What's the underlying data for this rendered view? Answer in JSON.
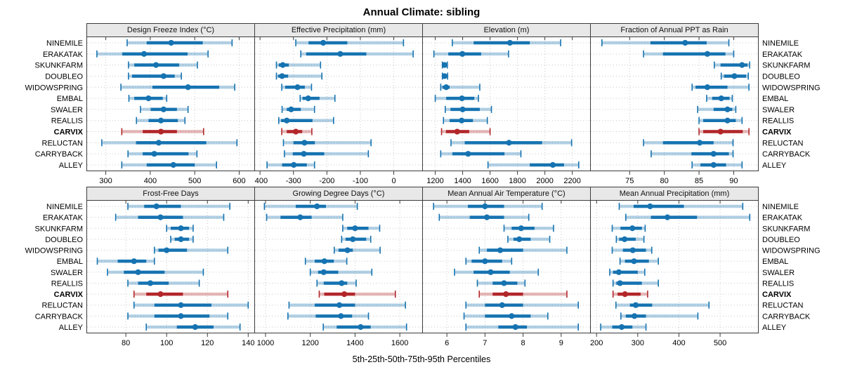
{
  "title": "Annual Climate: sibling",
  "footer": "5th-25th-50th-75th-95th Percentiles",
  "sites": [
    "NINEMILE",
    "ERAKATAK",
    "SKUNKFARM",
    "DOUBLEO",
    "WIDOWSPRING",
    "EMBAL",
    "SWALER",
    "REALLIS",
    "CARVIX",
    "RELUCTAN",
    "CARRYBACK",
    "ALLEY"
  ],
  "highlight_site": "CARVIX",
  "percentile_labels": [
    "5th",
    "25th",
    "50th",
    "75th",
    "95th"
  ],
  "colors": {
    "series": "#1673b1",
    "highlight": "#b2262a",
    "strip_bg": "#e8e8e8",
    "panel_border": "#3c3c3c",
    "gridline": "#c9c9c9",
    "text": "#000000"
  },
  "chart_data": [
    {
      "type": "percentile-range",
      "title": "Design Freeze Index (°C)",
      "row": 1,
      "xlim": [
        258,
        634
      ],
      "ticks": [
        300,
        400,
        500,
        600
      ],
      "values": [
        [
          348,
          392,
          447,
          518,
          584
        ],
        [
          280,
          337,
          386,
          484,
          530
        ],
        [
          351,
          364,
          413,
          465,
          506
        ],
        [
          351,
          359,
          430,
          455,
          470
        ],
        [
          334,
          405,
          485,
          555,
          590
        ],
        [
          352,
          364,
          396,
          428,
          437
        ],
        [
          378,
          401,
          430,
          460,
          485
        ],
        [
          369,
          396,
          424,
          462,
          478
        ],
        [
          336,
          383,
          424,
          460,
          520
        ],
        [
          291,
          368,
          419,
          526,
          595
        ],
        [
          350,
          383,
          409,
          486,
          505
        ],
        [
          336,
          392,
          452,
          500,
          549
        ]
      ]
    },
    {
      "type": "percentile-range",
      "title": "Effective Precipitation (mm)",
      "row": 1,
      "xlim": [
        -415,
        85
      ],
      "ticks": [
        -400,
        -300,
        -200,
        -100,
        0
      ],
      "values": [
        [
          -293,
          -255,
          -211,
          -139,
          29
        ],
        [
          -278,
          -262,
          -160,
          -82,
          58
        ],
        [
          -351,
          -344,
          -332,
          -314,
          -219
        ],
        [
          -351,
          -346,
          -334,
          -316,
          -215
        ],
        [
          -335,
          -325,
          -288,
          -266,
          -246
        ],
        [
          -280,
          -273,
          -256,
          -222,
          -176
        ],
        [
          -334,
          -320,
          -307,
          -278,
          -237
        ],
        [
          -344,
          -337,
          -320,
          -243,
          -180
        ],
        [
          -335,
          -320,
          -293,
          -274,
          -245
        ],
        [
          -330,
          -300,
          -267,
          -236,
          -68
        ],
        [
          -327,
          -302,
          -269,
          -208,
          -76
        ],
        [
          -379,
          -334,
          -299,
          -260,
          -237
        ]
      ]
    },
    {
      "type": "percentile-range",
      "title": "Elevation (m)",
      "row": 1,
      "xlim": [
        1110,
        2330
      ],
      "ticks": [
        1200,
        1400,
        1600,
        1800,
        2000,
        2200
      ],
      "values": [
        [
          1325,
          1480,
          1745,
          1890,
          2115
        ],
        [
          1190,
          1295,
          1398,
          1535,
          1735
        ],
        [
          1252,
          1258,
          1268,
          1280,
          1288
        ],
        [
          1252,
          1258,
          1268,
          1280,
          1290
        ],
        [
          1240,
          1252,
          1280,
          1305,
          1525
        ],
        [
          1200,
          1280,
          1395,
          1485,
          1515
        ],
        [
          1273,
          1311,
          1400,
          1525,
          1610
        ],
        [
          1260,
          1305,
          1393,
          1475,
          1580
        ],
        [
          1246,
          1278,
          1360,
          1448,
          1600
        ],
        [
          1315,
          1415,
          1738,
          1980,
          2195
        ],
        [
          1240,
          1325,
          1440,
          1705,
          1825
        ],
        [
          1585,
          1890,
          2058,
          2140,
          2247
        ]
      ]
    },
    {
      "type": "percentile-range",
      "title": "Fraction of Annual PPT as Rain",
      "row": 1,
      "xlim": [
        69.4,
        93.5
      ],
      "ticks": [
        75,
        80,
        85,
        90
      ],
      "values": [
        [
          71,
          78,
          83,
          86.1,
          89.3
        ],
        [
          77,
          79.8,
          86.2,
          88.8,
          90
        ],
        [
          87.2,
          88.1,
          91.2,
          92,
          92.3
        ],
        [
          88.2,
          88.6,
          90.1,
          91.8,
          92.1
        ],
        [
          84,
          84.5,
          86.2,
          89.1,
          92.2
        ],
        [
          86.1,
          86.9,
          88.2,
          89.4,
          89.8
        ],
        [
          84.8,
          87.1,
          89.1,
          89.8,
          90.3
        ],
        [
          85,
          85.6,
          89.1,
          90.3,
          91.2
        ],
        [
          85,
          85.6,
          88.1,
          91.3,
          92.2
        ],
        [
          77,
          79.8,
          85.1,
          87.1,
          89.9
        ],
        [
          78.1,
          83.9,
          87.1,
          89.3,
          89.9
        ],
        [
          84,
          85.2,
          87.1,
          88.9,
          91.2
        ]
      ]
    },
    {
      "type": "percentile-range",
      "title": "Frost-Free Days",
      "row": 2,
      "xlim": [
        61,
        143
      ],
      "ticks": [
        80,
        100,
        120,
        140
      ],
      "values": [
        [
          81,
          89,
          95,
          107,
          131
        ],
        [
          75,
          86,
          97,
          108,
          128
        ],
        [
          100,
          102,
          107,
          111,
          113
        ],
        [
          102,
          104,
          107,
          111,
          113
        ],
        [
          94,
          96,
          100,
          110,
          130
        ],
        [
          66,
          76,
          84,
          90,
          94
        ],
        [
          71,
          79,
          86,
          99,
          118
        ],
        [
          81,
          86,
          92,
          101,
          116
        ],
        [
          84,
          90,
          97,
          108,
          130
        ],
        [
          84,
          94,
          107,
          122,
          140
        ],
        [
          81,
          94,
          107,
          121,
          130
        ],
        [
          90,
          105,
          114,
          123,
          136
        ]
      ]
    },
    {
      "type": "percentile-range",
      "title": "Growing Degree Days (°C)",
      "row": 2,
      "xlim": [
        953,
        1700
      ],
      "ticks": [
        1000,
        1200,
        1400,
        1600
      ],
      "values": [
        [
          995,
          1135,
          1230,
          1270,
          1410
        ],
        [
          1005,
          1067,
          1155,
          1206,
          1345
        ],
        [
          1345,
          1365,
          1400,
          1460,
          1510
        ],
        [
          1340,
          1358,
          1390,
          1450,
          1470
        ],
        [
          1307,
          1326,
          1366,
          1390,
          1512
        ],
        [
          1178,
          1220,
          1263,
          1305,
          1363
        ],
        [
          1200,
          1235,
          1260,
          1325,
          1475
        ],
        [
          1230,
          1260,
          1340,
          1365,
          1405
        ],
        [
          1240,
          1262,
          1352,
          1400,
          1580
        ],
        [
          1105,
          1220,
          1330,
          1400,
          1625
        ],
        [
          1100,
          1224,
          1337,
          1387,
          1460
        ],
        [
          1258,
          1318,
          1425,
          1470,
          1630
        ]
      ]
    },
    {
      "type": "percentile-range",
      "title": "Mean Annual Air Temperature (°C)",
      "row": 2,
      "xlim": [
        5.37,
        9.76
      ],
      "ticks": [
        6,
        7,
        8,
        9
      ],
      "values": [
        [
          5.65,
          6.55,
          7.0,
          7.5,
          8.5
        ],
        [
          5.8,
          6.6,
          7.05,
          7.5,
          8.15
        ],
        [
          7.5,
          7.7,
          7.95,
          8.3,
          8.8
        ],
        [
          7.6,
          7.75,
          7.9,
          8.2,
          8.7
        ],
        [
          6.85,
          7.05,
          7.4,
          8.0,
          9.15
        ],
        [
          6.5,
          6.65,
          7.0,
          7.45,
          7.7
        ],
        [
          6.2,
          6.7,
          7.15,
          7.65,
          8.4
        ],
        [
          6.8,
          7.2,
          7.5,
          7.85,
          8.05
        ],
        [
          6.85,
          7.2,
          7.55,
          8.0,
          9.15
        ],
        [
          6.5,
          7.0,
          7.45,
          8.0,
          9.45
        ],
        [
          6.45,
          7.0,
          7.7,
          8.2,
          8.65
        ],
        [
          6.5,
          7.35,
          7.8,
          8.1,
          9.45
        ]
      ]
    },
    {
      "type": "percentile-range",
      "title": "Mean Annual Precipitation (mm)",
      "row": 2,
      "xlim": [
        186,
        592
      ],
      "ticks": [
        200,
        300,
        400,
        500
      ],
      "values": [
        [
          255,
          290,
          330,
          412,
          555
        ],
        [
          271,
          332,
          372,
          444,
          572
        ],
        [
          238,
          258,
          287,
          310,
          318
        ],
        [
          248,
          255,
          268,
          295,
          315
        ],
        [
          238,
          264,
          288,
          320,
          334
        ],
        [
          257,
          269,
          291,
          327,
          350
        ],
        [
          232,
          240,
          254,
          300,
          317
        ],
        [
          240,
          248,
          257,
          310,
          350
        ],
        [
          240,
          251,
          269,
          307,
          324
        ],
        [
          247,
          281,
          295,
          335,
          473
        ],
        [
          259,
          271,
          292,
          320,
          446
        ],
        [
          210,
          238,
          261,
          287,
          320
        ]
      ]
    }
  ]
}
